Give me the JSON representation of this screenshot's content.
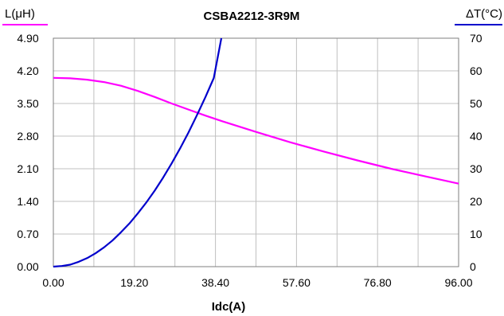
{
  "chart_data": {
    "type": "line",
    "title": "CSBA2212-3R9M",
    "xlabel": "Idc(A)",
    "ylabel_left": "L(μH)",
    "ylabel_right": "ΔT(°C)",
    "xlim": [
      0,
      96
    ],
    "ylim_left": [
      0,
      4.9
    ],
    "ylim_right": [
      0,
      70
    ],
    "x_ticks": [
      "0.00",
      "19.20",
      "38.40",
      "57.60",
      "76.80",
      "96.00"
    ],
    "y_left_ticks": [
      "0.00",
      "0.70",
      "1.40",
      "2.10",
      "2.80",
      "3.50",
      "4.20",
      "4.90"
    ],
    "y_right_ticks": [
      "0",
      "10",
      "20",
      "30",
      "40",
      "50",
      "60",
      "70"
    ],
    "grid": true,
    "series": [
      {
        "name": "L(μH)",
        "axis": "left",
        "color": "#ff00ff",
        "x": [
          0,
          4,
          8,
          12,
          16,
          20,
          24,
          28,
          32,
          36,
          40,
          48,
          56,
          64,
          72,
          80,
          88,
          96
        ],
        "y": [
          4.05,
          4.04,
          4.01,
          3.96,
          3.88,
          3.77,
          3.64,
          3.5,
          3.37,
          3.24,
          3.12,
          2.89,
          2.67,
          2.47,
          2.28,
          2.1,
          1.94,
          1.78
        ]
      },
      {
        "name": "ΔT(°C)",
        "axis": "right",
        "color": "#0000cc",
        "x": [
          0,
          2,
          4,
          6,
          8,
          10,
          12,
          14,
          16,
          18,
          20,
          22,
          24,
          26,
          28,
          30,
          32,
          34,
          36,
          38,
          39.8
        ],
        "y": [
          0,
          0.2,
          0.6,
          1.5,
          2.6,
          4.1,
          5.9,
          8.0,
          10.5,
          13.2,
          16.3,
          19.6,
          23.3,
          27.3,
          31.6,
          36.2,
          41.1,
          46.4,
          51.9,
          57.8,
          70
        ]
      }
    ]
  }
}
